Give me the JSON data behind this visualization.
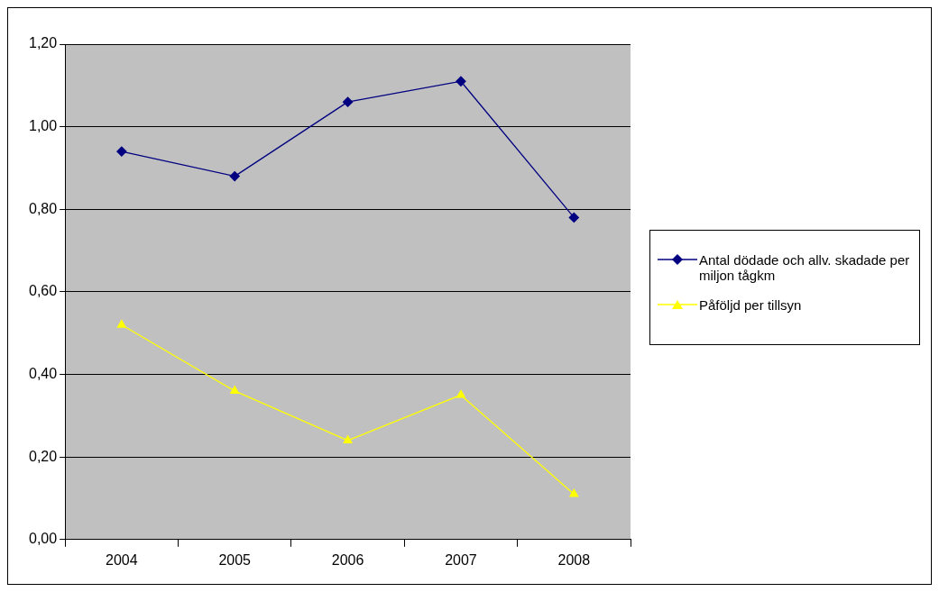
{
  "chart_data": {
    "type": "line",
    "categories": [
      "2004",
      "2005",
      "2006",
      "2007",
      "2008"
    ],
    "series": [
      {
        "name": "Antal dödade och allv. skadade per miljon tågkm",
        "color": "#000080",
        "marker": "diamond",
        "values": [
          0.94,
          0.88,
          1.06,
          1.11,
          0.78
        ]
      },
      {
        "name": "Påföljd per tillsyn",
        "color": "#ffff00",
        "marker": "triangle",
        "values": [
          0.52,
          0.36,
          0.24,
          0.35,
          0.11
        ]
      }
    ],
    "ylim": [
      0,
      1.2
    ],
    "yticks": [
      {
        "value": 0,
        "label": "0,00"
      },
      {
        "value": 0.2,
        "label": "0,20"
      },
      {
        "value": 0.4,
        "label": "0,40"
      },
      {
        "value": 0.6,
        "label": "0,60"
      },
      {
        "value": 0.8,
        "label": "0,80"
      },
      {
        "value": 1,
        "label": "1,00"
      },
      {
        "value": 1.2,
        "label": "1,20"
      }
    ],
    "grid": "y",
    "legend": "right",
    "line_style": "solid"
  }
}
